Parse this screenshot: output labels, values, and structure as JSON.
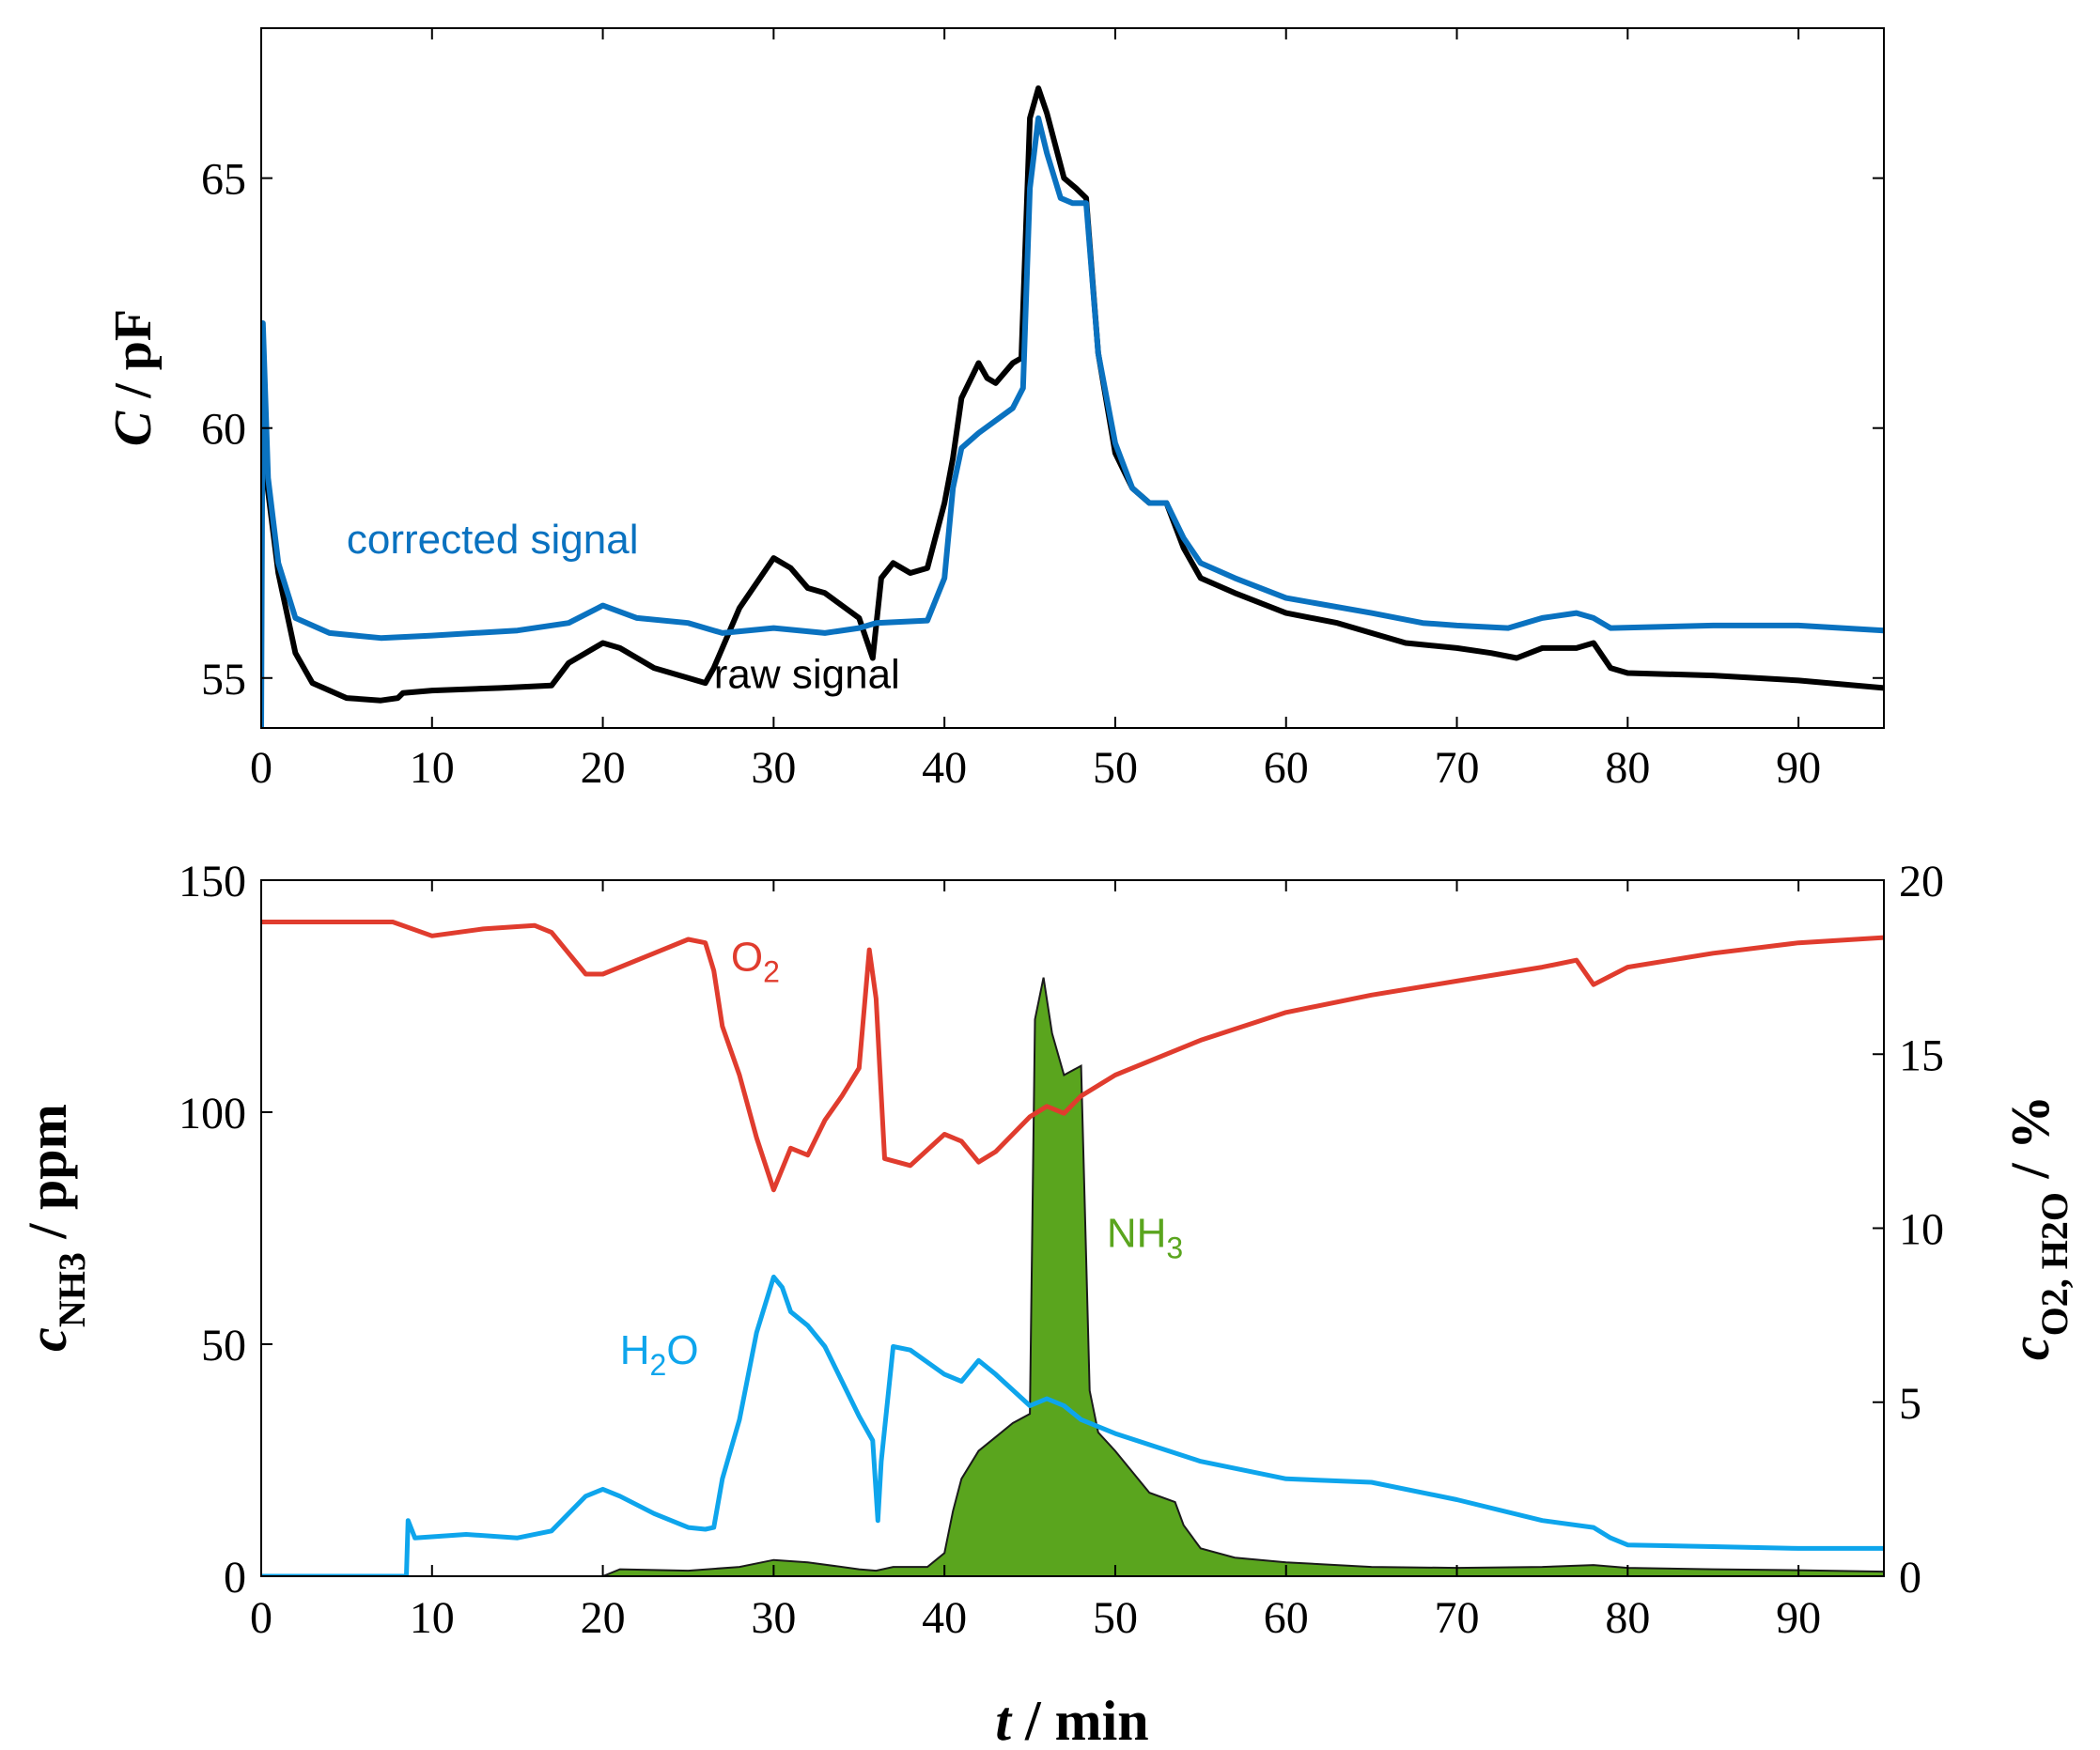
{
  "colors": {
    "raw": "#000000",
    "corrected": "#0a72c0",
    "o2": "#e03c2e",
    "h2o": "#0ea5ec",
    "nh3_fill": "#5aa51e"
  },
  "chart_data": [
    {
      "type": "line",
      "xlim": [
        0,
        95
      ],
      "ylim": [
        54,
        68
      ],
      "x_ticks": [
        0,
        10,
        20,
        30,
        40,
        50,
        60,
        70,
        80,
        90
      ],
      "y_ticks": [
        55,
        60,
        65
      ],
      "ylabel": {
        "italic": "C",
        "rest": " / pF"
      },
      "series": [
        {
          "name": "raw signal",
          "points": [
            [
              0,
              62
            ],
            [
              0.3,
              59
            ],
            [
              1,
              57.1
            ],
            [
              2,
              55.5
            ],
            [
              3,
              54.9
            ],
            [
              5,
              54.6
            ],
            [
              7,
              54.55
            ],
            [
              8,
              54.6
            ],
            [
              8.3,
              54.7
            ],
            [
              10,
              54.75
            ],
            [
              14,
              54.8
            ],
            [
              17,
              54.85
            ],
            [
              18,
              55.3
            ],
            [
              20,
              55.7
            ],
            [
              21,
              55.6
            ],
            [
              23,
              55.2
            ],
            [
              25,
              55.0
            ],
            [
              26,
              54.9
            ],
            [
              26.5,
              55.2
            ],
            [
              28,
              56.4
            ],
            [
              30,
              57.4
            ],
            [
              31,
              57.2
            ],
            [
              32,
              56.8
            ],
            [
              33,
              56.7
            ],
            [
              35,
              56.2
            ],
            [
              35.8,
              55.4
            ],
            [
              36.3,
              57.0
            ],
            [
              37,
              57.3
            ],
            [
              38,
              57.1
            ],
            [
              39,
              57.2
            ],
            [
              40,
              58.5
            ],
            [
              40.5,
              59.4
            ],
            [
              41,
              60.6
            ],
            [
              42,
              61.3
            ],
            [
              42.5,
              61.0
            ],
            [
              43,
              60.9
            ],
            [
              44,
              61.3
            ],
            [
              44.5,
              61.4
            ],
            [
              45,
              66.2
            ],
            [
              45.5,
              66.8
            ],
            [
              46,
              66.3
            ],
            [
              47,
              65.0
            ],
            [
              47.7,
              64.8
            ],
            [
              48.3,
              64.6
            ],
            [
              49,
              61.5
            ],
            [
              50,
              59.5
            ],
            [
              51,
              58.8
            ],
            [
              52,
              58.5
            ],
            [
              53,
              58.5
            ],
            [
              54,
              57.6
            ],
            [
              55,
              57.0
            ],
            [
              57,
              56.7
            ],
            [
              60,
              56.3
            ],
            [
              63,
              56.1
            ],
            [
              65,
              55.9
            ],
            [
              67,
              55.7
            ],
            [
              70,
              55.6
            ],
            [
              72,
              55.5
            ],
            [
              73.5,
              55.4
            ],
            [
              75,
              55.6
            ],
            [
              77,
              55.6
            ],
            [
              78,
              55.7
            ],
            [
              79,
              55.2
            ],
            [
              80,
              55.1
            ],
            [
              85,
              55.05
            ],
            [
              90,
              54.95
            ],
            [
              95,
              54.8
            ]
          ]
        },
        {
          "name": "corrected signal",
          "points": [
            [
              0,
              54
            ],
            [
              0.1,
              62.1
            ],
            [
              0.4,
              59
            ],
            [
              1,
              57.3
            ],
            [
              2,
              56.2
            ],
            [
              4,
              55.9
            ],
            [
              7,
              55.8
            ],
            [
              10,
              55.85
            ],
            [
              15,
              55.95
            ],
            [
              18,
              56.1
            ],
            [
              20,
              56.45
            ],
            [
              22,
              56.2
            ],
            [
              25,
              56.1
            ],
            [
              27,
              55.9
            ],
            [
              30,
              56.0
            ],
            [
              33,
              55.9
            ],
            [
              35,
              56.0
            ],
            [
              36,
              56.1
            ],
            [
              39,
              56.15
            ],
            [
              40,
              57.0
            ],
            [
              40.5,
              58.8
            ],
            [
              41,
              59.6
            ],
            [
              42,
              59.9
            ],
            [
              44,
              60.4
            ],
            [
              44.6,
              60.8
            ],
            [
              45,
              64.8
            ],
            [
              45.5,
              66.2
            ],
            [
              46,
              65.5
            ],
            [
              46.8,
              64.6
            ],
            [
              47.5,
              64.5
            ],
            [
              48.3,
              64.5
            ],
            [
              49,
              61.5
            ],
            [
              50,
              59.7
            ],
            [
              51,
              58.8
            ],
            [
              52,
              58.5
            ],
            [
              53,
              58.5
            ],
            [
              54,
              57.8
            ],
            [
              55,
              57.3
            ],
            [
              57,
              57.0
            ],
            [
              60,
              56.6
            ],
            [
              65,
              56.3
            ],
            [
              68,
              56.1
            ],
            [
              70,
              56.05
            ],
            [
              73,
              56.0
            ],
            [
              75,
              56.2
            ],
            [
              77,
              56.3
            ],
            [
              78,
              56.2
            ],
            [
              79,
              56.0
            ],
            [
              85,
              56.05
            ],
            [
              90,
              56.05
            ],
            [
              95,
              55.95
            ]
          ]
        }
      ],
      "annotations": [
        {
          "text": "corrected signal",
          "x": 5,
          "y": 57.5,
          "series": "corrected signal"
        },
        {
          "text": "raw signal",
          "x": 26.5,
          "y": 54.8,
          "series": "raw signal"
        }
      ]
    },
    {
      "type": "area",
      "xlim": [
        0,
        95
      ],
      "ylim_left": [
        0,
        150
      ],
      "ylim_right": [
        0,
        20
      ],
      "x_ticks": [
        0,
        10,
        20,
        30,
        40,
        50,
        60,
        70,
        80,
        90
      ],
      "y_ticks_left": [
        0,
        50,
        100,
        150
      ],
      "y_ticks_right": [
        0,
        5,
        10,
        15,
        20
      ],
      "xlabel": {
        "italic": "t",
        "rest": " / min"
      },
      "ylabel_left": {
        "italic": "c",
        "sub": "NH3",
        "rest": " / ppm"
      },
      "ylabel_right": {
        "italic": "c",
        "sub": "O2, H2O",
        "rest": " / %"
      },
      "series": [
        {
          "name": "NH3",
          "axis": "left",
          "points": [
            [
              0,
              0
            ],
            [
              20,
              0
            ],
            [
              21,
              1.5
            ],
            [
              25,
              1.2
            ],
            [
              28,
              2
            ],
            [
              30,
              3.5
            ],
            [
              32,
              3
            ],
            [
              35,
              1.5
            ],
            [
              36,
              1.2
            ],
            [
              37,
              2
            ],
            [
              39,
              2
            ],
            [
              40,
              5
            ],
            [
              40.5,
              14
            ],
            [
              41,
              21
            ],
            [
              42,
              27
            ],
            [
              43,
              30
            ],
            [
              44,
              33
            ],
            [
              45,
              35
            ],
            [
              45.3,
              120
            ],
            [
              45.8,
              129
            ],
            [
              46.3,
              117
            ],
            [
              47,
              108
            ],
            [
              48,
              110
            ],
            [
              48.5,
              40
            ],
            [
              49,
              31
            ],
            [
              50,
              27
            ],
            [
              52,
              18
            ],
            [
              53.5,
              16
            ],
            [
              54,
              11
            ],
            [
              55,
              6
            ],
            [
              57,
              4
            ],
            [
              60,
              3
            ],
            [
              65,
              2
            ],
            [
              70,
              1.8
            ],
            [
              75,
              2
            ],
            [
              78,
              2.4
            ],
            [
              80,
              1.8
            ],
            [
              85,
              1.5
            ],
            [
              90,
              1.3
            ],
            [
              95,
              1
            ]
          ]
        },
        {
          "name": "O2",
          "axis": "right",
          "points": [
            [
              0,
              18.8
            ],
            [
              7.7,
              18.8
            ],
            [
              10,
              18.4
            ],
            [
              13,
              18.6
            ],
            [
              16,
              18.7
            ],
            [
              17,
              18.5
            ],
            [
              18,
              17.9
            ],
            [
              19,
              17.3
            ],
            [
              20,
              17.3
            ],
            [
              23,
              17.9
            ],
            [
              25,
              18.3
            ],
            [
              26,
              18.2
            ],
            [
              26.5,
              17.4
            ],
            [
              27,
              15.8
            ],
            [
              28,
              14.4
            ],
            [
              29,
              12.6
            ],
            [
              30,
              11.1
            ],
            [
              31,
              12.3
            ],
            [
              32,
              12.1
            ],
            [
              33,
              13.1
            ],
            [
              34,
              13.8
            ],
            [
              35,
              14.6
            ],
            [
              35.6,
              18.0
            ],
            [
              36,
              16.6
            ],
            [
              36.5,
              12.0
            ],
            [
              38,
              11.8
            ],
            [
              40,
              12.7
            ],
            [
              41,
              12.5
            ],
            [
              42,
              11.9
            ],
            [
              43,
              12.2
            ],
            [
              45,
              13.2
            ],
            [
              46,
              13.5
            ],
            [
              47,
              13.3
            ],
            [
              48,
              13.8
            ],
            [
              50,
              14.4
            ],
            [
              55,
              15.4
            ],
            [
              60,
              16.2
            ],
            [
              65,
              16.7
            ],
            [
              70,
              17.1
            ],
            [
              75,
              17.5
            ],
            [
              77,
              17.7
            ],
            [
              78,
              17.0
            ],
            [
              80,
              17.5
            ],
            [
              85,
              17.9
            ],
            [
              90,
              18.2
            ],
            [
              95,
              18.35
            ]
          ]
        },
        {
          "name": "H2O",
          "axis": "right",
          "points": [
            [
              0,
              0
            ],
            [
              8.5,
              0
            ],
            [
              8.6,
              1.6
            ],
            [
              9,
              1.1
            ],
            [
              12,
              1.2
            ],
            [
              15,
              1.1
            ],
            [
              17,
              1.3
            ],
            [
              18,
              1.8
            ],
            [
              19,
              2.3
            ],
            [
              20,
              2.5
            ],
            [
              21,
              2.3
            ],
            [
              23,
              1.8
            ],
            [
              25,
              1.4
            ],
            [
              26,
              1.35
            ],
            [
              26.5,
              1.4
            ],
            [
              27,
              2.8
            ],
            [
              28,
              4.5
            ],
            [
              29,
              7.0
            ],
            [
              30,
              8.6
            ],
            [
              30.5,
              8.3
            ],
            [
              31,
              7.6
            ],
            [
              32,
              7.2
            ],
            [
              33,
              6.6
            ],
            [
              34,
              5.6
            ],
            [
              35,
              4.6
            ],
            [
              35.8,
              3.9
            ],
            [
              36.1,
              1.6
            ],
            [
              36.3,
              3.3
            ],
            [
              37,
              6.6
            ],
            [
              38,
              6.5
            ],
            [
              40,
              5.8
            ],
            [
              41,
              5.6
            ],
            [
              42,
              6.2
            ],
            [
              43,
              5.8
            ],
            [
              45,
              4.9
            ],
            [
              46,
              5.1
            ],
            [
              47,
              4.9
            ],
            [
              48,
              4.5
            ],
            [
              50,
              4.1
            ],
            [
              55,
              3.3
            ],
            [
              60,
              2.8
            ],
            [
              65,
              2.7
            ],
            [
              70,
              2.2
            ],
            [
              75,
              1.6
            ],
            [
              78,
              1.4
            ],
            [
              79,
              1.1
            ],
            [
              80,
              0.9
            ],
            [
              85,
              0.85
            ],
            [
              90,
              0.8
            ],
            [
              95,
              0.8
            ]
          ]
        }
      ],
      "annotations": [
        {
          "text": "O",
          "sub": "2",
          "series": "O2",
          "x": 27.5,
          "y_right": 17.4
        },
        {
          "text": "H",
          "sub": "2",
          "tail": "O",
          "series": "H2O",
          "x": 21,
          "y_right": 6.1
        },
        {
          "text": "NH",
          "sub": "3",
          "series": "NH3",
          "x": 49.5,
          "y_left": 71
        }
      ]
    }
  ]
}
